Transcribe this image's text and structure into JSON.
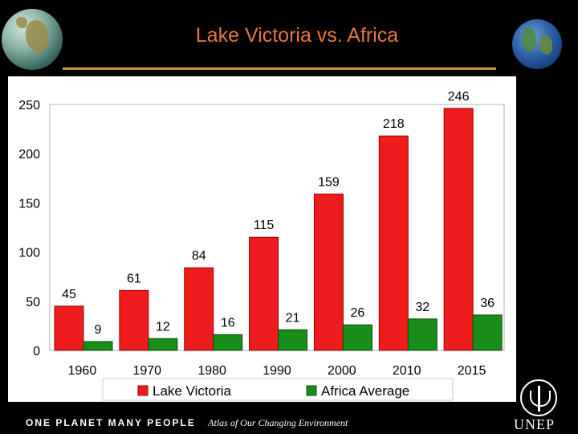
{
  "title": "Lake Victoria vs. Africa",
  "footer": {
    "brand": "ONE PLANET MANY PEOPLE",
    "subtitle": "Atlas of Our Changing Environment"
  },
  "logo": "UNEP",
  "icons": {
    "left": "africa-globe-icon",
    "right": "earth-globe-icon",
    "logo": "unep-emblem-icon"
  },
  "colors": {
    "lake_victoria": "#ee1c1c",
    "africa_average": "#1a8c1a",
    "title": "#e8763a"
  },
  "chart_data": {
    "type": "bar",
    "title": "",
    "xlabel": "",
    "ylabel": "",
    "categories": [
      "1960",
      "1970",
      "1980",
      "1990",
      "2000",
      "2010",
      "2015"
    ],
    "yticks": [
      "0",
      "50",
      "100",
      "150",
      "200",
      "250"
    ],
    "ylim": [
      0,
      250
    ],
    "grid": false,
    "legend_position": "bottom",
    "series": [
      {
        "name": "Lake Victoria",
        "values": [
          45,
          61,
          84,
          115,
          159,
          218,
          246
        ],
        "labels": [
          "45",
          "61",
          "84",
          "115",
          "159",
          "218",
          "246"
        ]
      },
      {
        "name": "Africa Average",
        "values": [
          9,
          12,
          16,
          21,
          26,
          32,
          36
        ],
        "labels": [
          "9",
          "12",
          "16",
          "21",
          "26",
          "32",
          "36"
        ]
      }
    ]
  }
}
